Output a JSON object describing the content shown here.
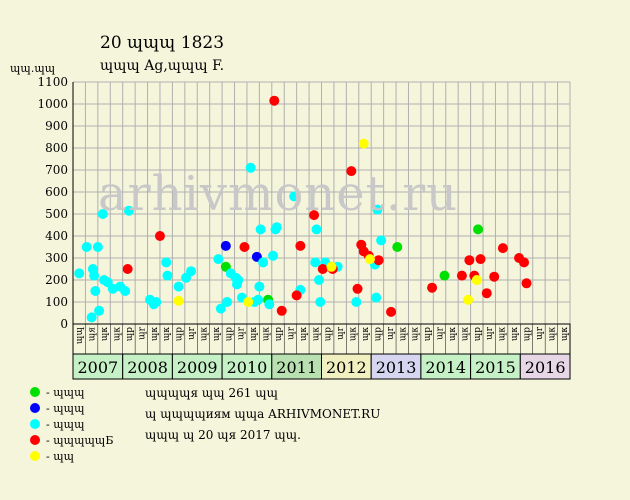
{
  "header": {
    "title": "20 ɰɰɰ 1823",
    "subtitle": "ɰɰɰ Ag,ɰɰɰ F.",
    "y_unit": "ɰɰ.ɰɰ"
  },
  "watermark": "arhivmonet.ru",
  "legend": [
    {
      "label": "- ɰɰɰ",
      "color": "#00e000"
    },
    {
      "label": "- ɰɰɰ",
      "color": "#0000ff"
    },
    {
      "label": "- ɰɰɰ",
      "color": "#00ffff"
    },
    {
      "label": "- ɰɰɰɰɰБ",
      "color": "#ff0000"
    },
    {
      "label": "- ɰɰ",
      "color": "#ffff00"
    }
  ],
  "footer": {
    "line1": "ɰɰɰɰя ɰɰ 261 ɰɰ",
    "line2": "ɰ ɰɰɰɰиям ɰɰa ARHIVMONET.RU",
    "line3": "ɰɰɰ ɰ 20 ɰя 2017 ɰɰ."
  },
  "chart_data": {
    "type": "scatter",
    "ylim": [
      0,
      1100
    ],
    "yticks": [
      0,
      100,
      200,
      300,
      400,
      500,
      600,
      700,
      800,
      900,
      1000,
      1100
    ],
    "grid": true,
    "quarter_labels": [
      "ɰɰ",
      "ɰя",
      "ɰк",
      "ɰк",
      "ɰр",
      "ɰr",
      "ɰк",
      "ɰк",
      "ɰр",
      "ɰr",
      "ɰк",
      "ɰк",
      "ɰр",
      "ɰr",
      "ɰк",
      "ɰк",
      "ɰр",
      "ɰr",
      "ɰк",
      "ɰк",
      "ɰр",
      "ɰr",
      "ɰк",
      "ɰк",
      "ɰр",
      "ɰr",
      "ɰк",
      "ɰк",
      "ɰр",
      "ɰr",
      "ɰк",
      "ɰк",
      "ɰр",
      "ɰr",
      "ɰк",
      "ɰк",
      "ɰр",
      "ɰr",
      "ɰк",
      "ɰк"
    ],
    "years": [
      {
        "label": "2007",
        "color": "#c6f0c6"
      },
      {
        "label": "2008",
        "color": "#c6f0c6"
      },
      {
        "label": "2009",
        "color": "#c6f0c6"
      },
      {
        "label": "2010",
        "color": "#c6f0c6"
      },
      {
        "label": "2011",
        "color": "#b8e0b0"
      },
      {
        "label": "2012",
        "color": "#f0f0c0"
      },
      {
        "label": "2013",
        "color": "#d6d6f0"
      },
      {
        "label": "2014",
        "color": "#c6f0c6"
      },
      {
        "label": "2015",
        "color": "#c6f0c6"
      },
      {
        "label": "2016",
        "color": "#e6d6e6"
      }
    ],
    "series": [
      {
        "color": "#00e000",
        "points": [
          [
            12.3,
            260
          ],
          [
            15.7,
            110
          ],
          [
            26.1,
            350
          ],
          [
            29.9,
            220
          ],
          [
            32.6,
            430
          ]
        ]
      },
      {
        "color": "#0000ff",
        "points": [
          [
            12.3,
            355
          ],
          [
            14.8,
            305
          ]
        ]
      },
      {
        "color": "#00ffff",
        "points": [
          [
            0.5,
            230
          ],
          [
            1.1,
            350
          ],
          [
            1.6,
            250
          ],
          [
            1.7,
            220
          ],
          [
            1.8,
            150
          ],
          [
            2.0,
            350
          ],
          [
            2.1,
            60
          ],
          [
            2.4,
            500
          ],
          [
            1.5,
            30
          ],
          [
            2.5,
            200
          ],
          [
            2.8,
            190
          ],
          [
            3.2,
            160
          ],
          [
            3.8,
            170
          ],
          [
            4.2,
            150
          ],
          [
            4.5,
            515
          ],
          [
            6.2,
            110
          ],
          [
            6.5,
            90
          ],
          [
            6.7,
            100
          ],
          [
            7.5,
            280
          ],
          [
            7.6,
            220
          ],
          [
            8.5,
            170
          ],
          [
            9.1,
            210
          ],
          [
            9.5,
            240
          ],
          [
            11.7,
            295
          ],
          [
            11.9,
            70
          ],
          [
            12.4,
            100
          ],
          [
            12.7,
            230
          ],
          [
            13.2,
            180
          ],
          [
            13.1,
            210
          ],
          [
            13.3,
            200
          ],
          [
            13.6,
            120
          ],
          [
            14.3,
            710
          ],
          [
            14.6,
            100
          ],
          [
            14.9,
            110
          ],
          [
            15.0,
            170
          ],
          [
            15.3,
            280
          ],
          [
            15.1,
            430
          ],
          [
            15.8,
            90
          ],
          [
            16.1,
            310
          ],
          [
            16.3,
            430
          ],
          [
            16.4,
            440
          ],
          [
            17.8,
            580
          ],
          [
            18.3,
            155
          ],
          [
            19.5,
            280
          ],
          [
            19.6,
            430
          ],
          [
            19.8,
            200
          ],
          [
            19.9,
            100
          ],
          [
            20.3,
            280
          ],
          [
            21.3,
            260
          ],
          [
            22.8,
            100
          ],
          [
            24.3,
            270
          ],
          [
            24.4,
            120
          ],
          [
            24.5,
            520
          ],
          [
            24.8,
            380
          ]
        ]
      },
      {
        "color": "#ff0000",
        "points": [
          [
            4.4,
            250
          ],
          [
            7.0,
            400
          ],
          [
            13.8,
            350
          ],
          [
            16.2,
            1015
          ],
          [
            16.8,
            60
          ],
          [
            18.0,
            130
          ],
          [
            18.3,
            355
          ],
          [
            19.4,
            495
          ],
          [
            20.1,
            250
          ],
          [
            20.9,
            250
          ],
          [
            22.4,
            695
          ],
          [
            22.9,
            160
          ],
          [
            23.2,
            360
          ],
          [
            23.4,
            330
          ],
          [
            23.8,
            310
          ],
          [
            24.6,
            290
          ],
          [
            25.6,
            55
          ],
          [
            28.9,
            165
          ],
          [
            31.3,
            220
          ],
          [
            31.9,
            290
          ],
          [
            32.3,
            220
          ],
          [
            32.8,
            295
          ],
          [
            33.3,
            140
          ],
          [
            33.9,
            215
          ],
          [
            34.6,
            345
          ],
          [
            35.9,
            300
          ],
          [
            36.3,
            280
          ],
          [
            36.5,
            185
          ]
        ]
      },
      {
        "color": "#ffff00",
        "points": [
          [
            8.5,
            105
          ],
          [
            14.1,
            100
          ],
          [
            20.8,
            260
          ],
          [
            23.4,
            820
          ],
          [
            23.9,
            295
          ],
          [
            31.8,
            110
          ],
          [
            32.5,
            200
          ]
        ]
      }
    ]
  }
}
